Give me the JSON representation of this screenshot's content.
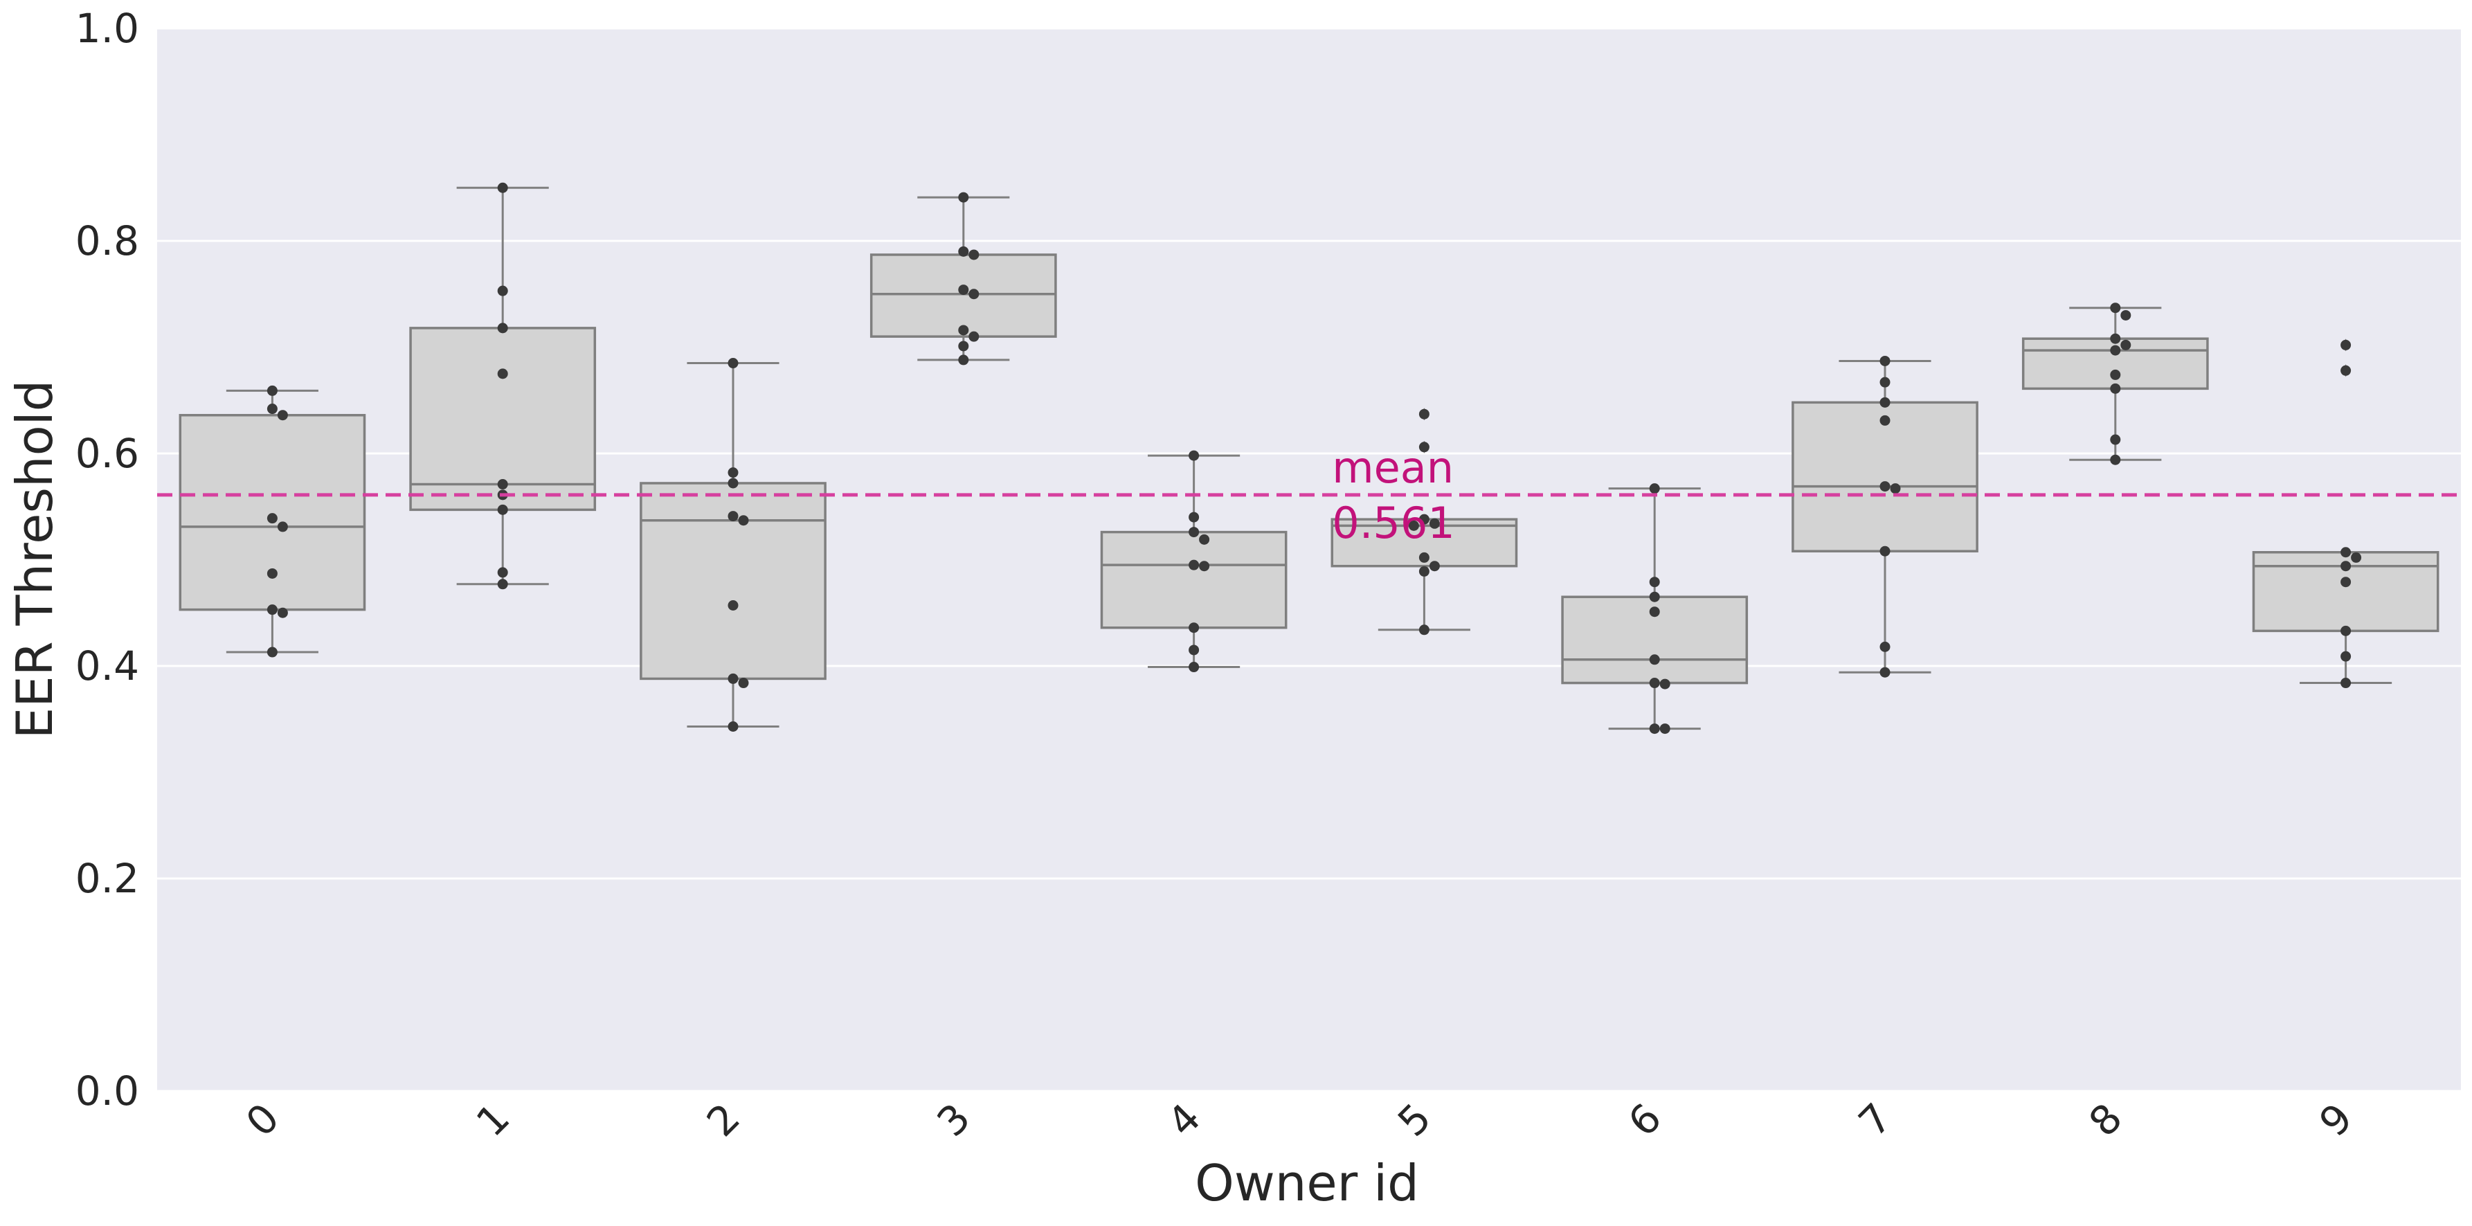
{
  "chart_data": {
    "type": "box",
    "xlabel": "Owner id",
    "ylabel": "EER Threshold",
    "ylim": [
      0,
      1
    ],
    "yticks": [
      0.0,
      0.2,
      0.4,
      0.6,
      0.8,
      1.0
    ],
    "ytick_labels": [
      "0.0",
      "0.2",
      "0.4",
      "0.6",
      "0.8",
      "1.0"
    ],
    "grid": true,
    "categories": [
      "0",
      "1",
      "2",
      "3",
      "4",
      "5",
      "6",
      "7",
      "8",
      "9"
    ],
    "boxes": [
      {
        "q1": 0.453,
        "median": 0.531,
        "q3": 0.636,
        "whisker_low": 0.413,
        "whisker_high": 0.659,
        "outliers": []
      },
      {
        "q1": 0.547,
        "median": 0.571,
        "q3": 0.718,
        "whisker_low": 0.477,
        "whisker_high": 0.85,
        "outliers": []
      },
      {
        "q1": 0.388,
        "median": 0.537,
        "q3": 0.572,
        "whisker_low": 0.343,
        "whisker_high": 0.685,
        "outliers": []
      },
      {
        "q1": 0.71,
        "median": 0.75,
        "q3": 0.787,
        "whisker_low": 0.688,
        "whisker_high": 0.841,
        "outliers": []
      },
      {
        "q1": 0.436,
        "median": 0.495,
        "q3": 0.526,
        "whisker_low": 0.399,
        "whisker_high": 0.598,
        "outliers": []
      },
      {
        "q1": 0.494,
        "median": 0.532,
        "q3": 0.538,
        "whisker_low": 0.434,
        "whisker_high": 0.538,
        "outliers": [
          0.606,
          0.637
        ]
      },
      {
        "q1": 0.384,
        "median": 0.406,
        "q3": 0.465,
        "whisker_low": 0.341,
        "whisker_high": 0.567,
        "outliers": []
      },
      {
        "q1": 0.508,
        "median": 0.569,
        "q3": 0.648,
        "whisker_low": 0.394,
        "whisker_high": 0.687,
        "outliers": []
      },
      {
        "q1": 0.661,
        "median": 0.697,
        "q3": 0.708,
        "whisker_low": 0.594,
        "whisker_high": 0.737,
        "outliers": []
      },
      {
        "q1": 0.433,
        "median": 0.494,
        "q3": 0.507,
        "whisker_low": 0.384,
        "whisker_high": 0.507,
        "outliers": [
          0.678,
          0.702
        ]
      }
    ],
    "points": [
      [
        0.659,
        0.642,
        0.636,
        0.539,
        0.531,
        0.487,
        0.453,
        0.45,
        0.413
      ],
      [
        0.85,
        0.753,
        0.718,
        0.675,
        0.571,
        0.561,
        0.547,
        0.488,
        0.477
      ],
      [
        0.685,
        0.582,
        0.572,
        0.541,
        0.537,
        0.457,
        0.388,
        0.384,
        0.343
      ],
      [
        0.841,
        0.79,
        0.787,
        0.754,
        0.75,
        0.716,
        0.71,
        0.701,
        0.688
      ],
      [
        0.598,
        0.54,
        0.526,
        0.519,
        0.495,
        0.494,
        0.436,
        0.415,
        0.399
      ],
      [
        0.637,
        0.606,
        0.538,
        0.534,
        0.532,
        0.502,
        0.494,
        0.489,
        0.434
      ],
      [
        0.567,
        0.479,
        0.465,
        0.451,
        0.406,
        0.384,
        0.383,
        0.341,
        0.341
      ],
      [
        0.687,
        0.667,
        0.648,
        0.631,
        0.569,
        0.567,
        0.508,
        0.418,
        0.394
      ],
      [
        0.737,
        0.73,
        0.708,
        0.697,
        0.702,
        0.674,
        0.661,
        0.613,
        0.594
      ],
      [
        0.702,
        0.678,
        0.507,
        0.502,
        0.494,
        0.479,
        0.433,
        0.409,
        0.384
      ]
    ],
    "mean_line": {
      "value": 0.561,
      "label_line1": "mean",
      "label_line2": "0.561"
    }
  },
  "colors": {
    "plot_bg": "#eaeaf2",
    "grid": "#ffffff",
    "box_fill": "#d3d3d3",
    "box_edge": "#7f7f7f",
    "point": "#3a3a3a",
    "mean": "#d6409f",
    "mean_text": "#c2127a"
  }
}
